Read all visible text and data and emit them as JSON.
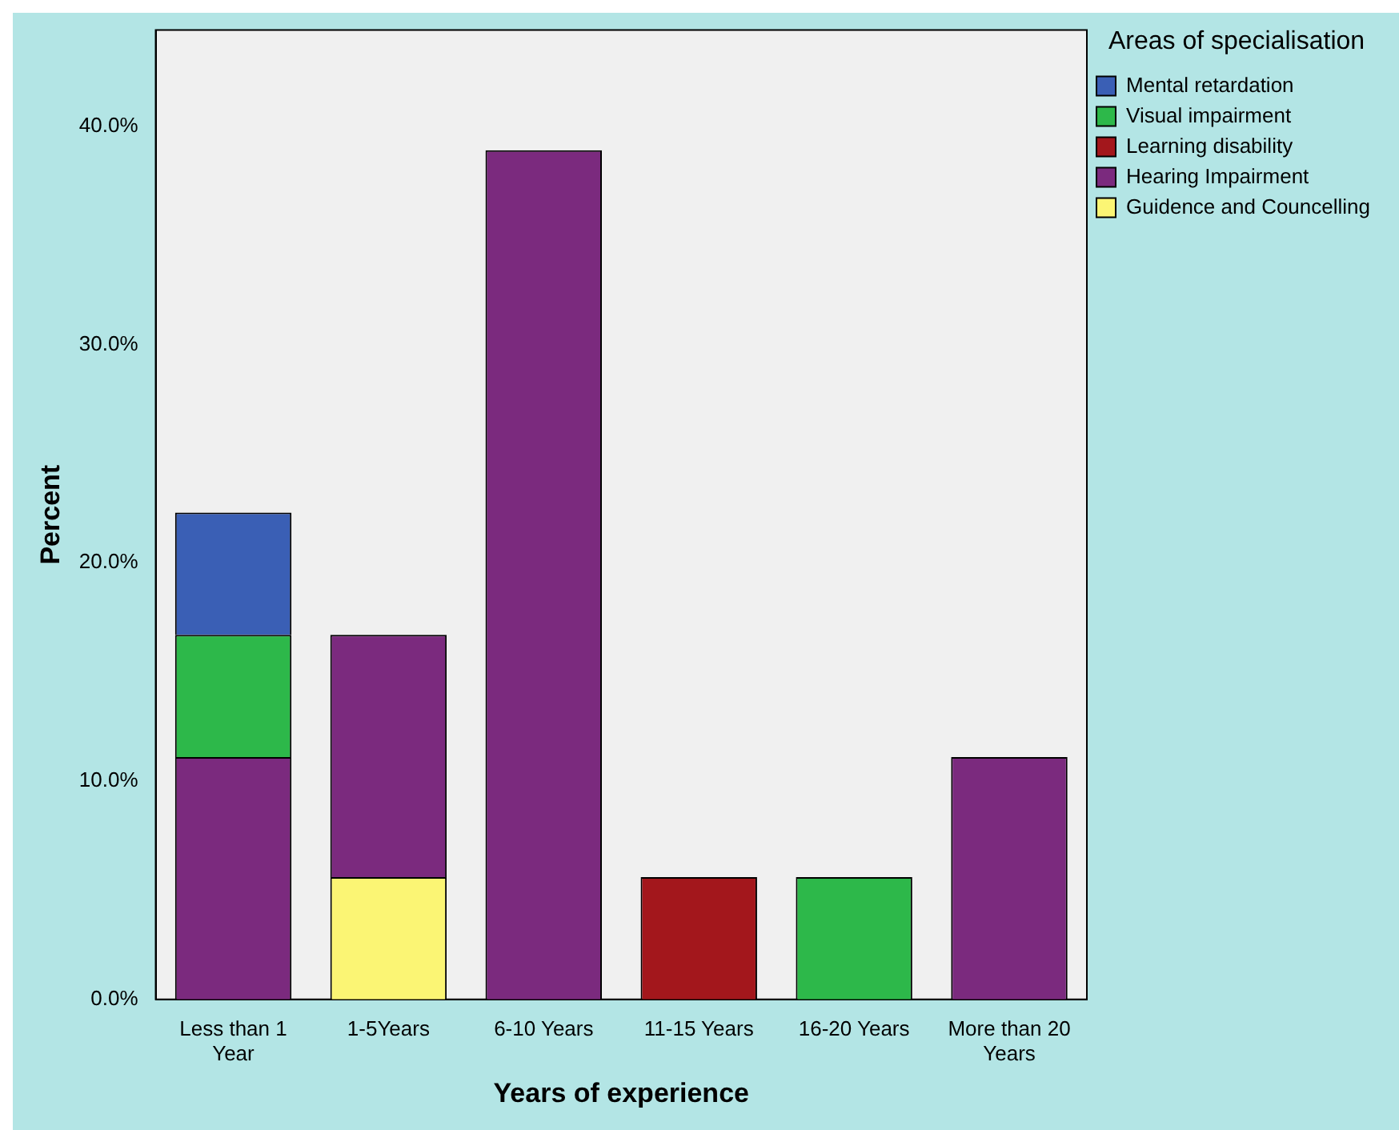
{
  "chart_data": {
    "type": "bar",
    "stacked": true,
    "xlabel": "Years of experience",
    "ylabel": "Percent",
    "legend_title": "Areas of specialisation",
    "legend": "top right",
    "grid": false,
    "categories": [
      "Less than 1 Year",
      "1-5Years",
      "6-10 Years",
      "11-15 Years",
      "16-20 Years",
      "More than 20 Years"
    ],
    "series": [
      {
        "name": "Guidence and Councelling",
        "color": "#fbf574",
        "values": [
          null,
          5.6,
          null,
          null,
          null,
          null
        ]
      },
      {
        "name": "Hearing Impairment",
        "color": "#7b2a7e",
        "values": [
          11.1,
          11.1,
          38.9,
          null,
          null,
          11.1
        ]
      },
      {
        "name": "Learning disability",
        "color": "#a3171c",
        "values": [
          null,
          null,
          null,
          5.6,
          null,
          null
        ]
      },
      {
        "name": "Visual impairment",
        "color": "#2db84a",
        "values": [
          5.6,
          null,
          null,
          null,
          5.6,
          null
        ]
      },
      {
        "name": "Mental retardation",
        "color": "#3a5fb5",
        "values": [
          5.6,
          null,
          null,
          null,
          null,
          null
        ]
      }
    ],
    "ylim": [
      0,
      44.4
    ],
    "yticks": [
      {
        "value": 0,
        "label": "0.0%"
      },
      {
        "value": 10,
        "label": "10.0%"
      },
      {
        "value": 20,
        "label": "20.0%"
      },
      {
        "value": 30,
        "label": "30.0%"
      },
      {
        "value": 40,
        "label": "40.0%"
      }
    ]
  }
}
